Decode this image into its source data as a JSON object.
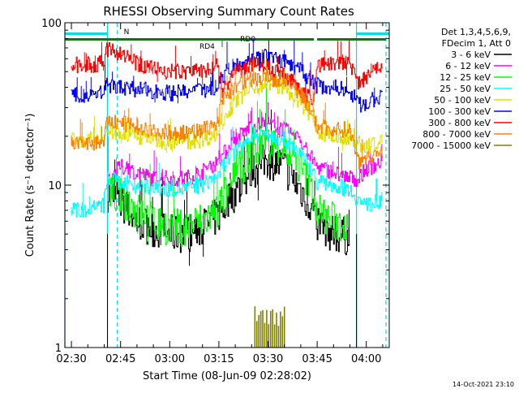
{
  "chart_data": {
    "type": "line",
    "title": "RHESSI Observing Summary Count Rates",
    "xlabel": "Start Time (08-Jun-09 02:28:02)",
    "ylabel": "Count Rate (s⁻¹ detector⁻¹)",
    "y_scale": "log",
    "ylim": [
      1,
      100
    ],
    "xlim": [
      "02:28",
      "04:07"
    ],
    "x_ticks": [
      "02:30",
      "02:45",
      "03:00",
      "03:15",
      "03:30",
      "03:45",
      "04:00"
    ],
    "y_ticks": [
      1,
      10,
      100
    ],
    "y_tick_labels": [
      "1",
      "10",
      "100"
    ],
    "legend_position": "right",
    "legend_header": [
      "Det 1,3,4,5,6,9,",
      "FDecim 1, Att 0"
    ],
    "timestamp": "14-Oct-2021 23:10",
    "annotations": [
      {
        "text": "N",
        "x": "02:45",
        "color": "#00e0e0"
      },
      {
        "text": "RD4",
        "x": "03:16",
        "color": "#008000"
      },
      {
        "text": "RD0",
        "x": "03:21",
        "color": "#008000"
      }
    ],
    "night_intervals": [
      [
        "02:28",
        "02:41"
      ],
      [
        "03:57",
        "04:07"
      ]
    ],
    "decimation_intervals": [
      [
        "02:28",
        "03:16"
      ],
      [
        "03:16",
        "03:44"
      ],
      [
        "03:45",
        "04:06"
      ]
    ],
    "vlines_solid": [
      "02:28",
      "02:41",
      "03:57"
    ],
    "vlines_dashed": [
      "02:44",
      "04:06"
    ],
    "x": [
      "02:30",
      "02:35",
      "02:40",
      "02:41",
      "02:45",
      "02:50",
      "02:55",
      "03:00",
      "03:05",
      "03:10",
      "03:15",
      "03:16",
      "03:20",
      "03:25",
      "03:30",
      "03:35",
      "03:40",
      "03:44",
      "03:45",
      "03:50",
      "03:55",
      "03:58",
      "04:00",
      "04:05"
    ],
    "series": [
      {
        "name": "3 - 6 keV",
        "color": "#000000",
        "values": [
          null,
          null,
          null,
          9,
          8,
          6,
          5.5,
          5,
          5,
          5.5,
          6.5,
          7,
          9,
          12,
          14.5,
          13,
          9.5,
          7,
          6,
          5,
          4.8,
          null,
          null,
          null
        ]
      },
      {
        "name": "6 - 12 keV",
        "color": "#ff00ff",
        "values": [
          null,
          null,
          null,
          10,
          13,
          12,
          11,
          11,
          11,
          12,
          14,
          15,
          19,
          23,
          24,
          22,
          19,
          14,
          13,
          12,
          11,
          11,
          12.5,
          14
        ]
      },
      {
        "name": "12 - 25 keV",
        "color": "#00ff00",
        "values": [
          null,
          null,
          null,
          9.5,
          8.5,
          7,
          6,
          5.5,
          5.5,
          6,
          7,
          8,
          11,
          16,
          18,
          17,
          13,
          9,
          7,
          6,
          5.5,
          null,
          null,
          null
        ]
      },
      {
        "name": "25 - 50 keV",
        "color": "#00ffff",
        "values": [
          7,
          7,
          7.5,
          11,
          10.5,
          10,
          9.5,
          9.5,
          9.5,
          10,
          11.5,
          13,
          16,
          20,
          21,
          19,
          16,
          12,
          10.5,
          10,
          9.5,
          8,
          7.5,
          8
        ]
      },
      {
        "name": "50 - 100 keV",
        "color": "#e0e000",
        "values": [
          19,
          19,
          19.5,
          22,
          21,
          20,
          19,
          18.5,
          18.5,
          19,
          21,
          25,
          32,
          40,
          43,
          40,
          32,
          26,
          21,
          20,
          19.5,
          18,
          17,
          19
        ]
      },
      {
        "name": "100 - 300 keV",
        "color": "#0000ff",
        "values": [
          36,
          36,
          37,
          41,
          40,
          39,
          38,
          37,
          37,
          38,
          41,
          47,
          55,
          60,
          62,
          58,
          51,
          43,
          41,
          40,
          39,
          31,
          32,
          35
        ]
      },
      {
        "name": "300 - 800 keV",
        "color": "#ff0000",
        "values": [
          55,
          55,
          56,
          68,
          65,
          56,
          53,
          50,
          50,
          51,
          54,
          38,
          50,
          55,
          53,
          48,
          39,
          33,
          55,
          56,
          55,
          42,
          45,
          56
        ]
      },
      {
        "name": "800 - 7000 keV",
        "color": "#ff8000",
        "values": [
          18,
          18,
          18.5,
          25,
          24,
          23,
          22,
          21,
          21,
          22,
          24,
          34,
          40,
          45,
          46,
          43,
          37,
          27,
          23,
          22,
          22,
          14,
          15,
          16
        ]
      },
      {
        "name": "7000 - 15000 keV",
        "color": "#808000",
        "values": [
          null,
          null,
          null,
          null,
          null,
          null,
          null,
          null,
          null,
          null,
          null,
          null,
          null,
          null,
          null,
          null,
          null,
          null,
          null,
          null,
          null,
          null,
          null,
          null
        ],
        "spikes": {
          "x_range": [
            "03:26",
            "03:35"
          ],
          "peak": 1.8
        }
      }
    ]
  }
}
